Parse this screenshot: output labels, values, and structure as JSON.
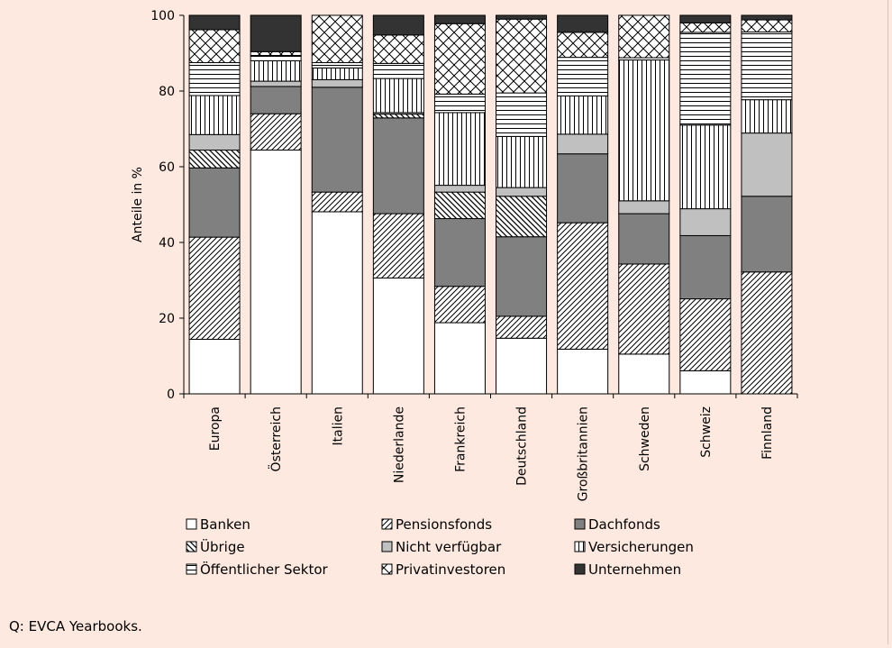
{
  "chart_data": {
    "type": "bar",
    "stacked": true,
    "title": "",
    "xlabel": "",
    "ylabel": "Anteile in %",
    "ylim": [
      0,
      100
    ],
    "yticks": [
      0,
      20,
      40,
      60,
      80,
      100
    ],
    "grid": false,
    "legend_position": "bottom",
    "categories": [
      "Europa",
      "Österreich",
      "Italien",
      "Niederlande",
      "Frankreich",
      "Deutschland",
      "Großbritannien",
      "Schweden",
      "Schweiz",
      "Finnland"
    ],
    "series": [
      {
        "name": "Banken",
        "color": "#ffffff",
        "pattern": "solid",
        "values": [
          14.4,
          64.4,
          48.1,
          30.6,
          18.8,
          14.7,
          11.8,
          10.5,
          6.1,
          0.0
        ]
      },
      {
        "name": "Pensionsfonds",
        "color": "#ffffff",
        "pattern": "diag-fine",
        "values": [
          27.0,
          9.6,
          5.2,
          17.0,
          9.6,
          5.8,
          33.4,
          23.8,
          19.0,
          32.2
        ]
      },
      {
        "name": "Dachfonds",
        "color": "#808080",
        "pattern": "solid",
        "values": [
          18.3,
          7.2,
          27.7,
          25.3,
          17.9,
          21.0,
          18.2,
          13.3,
          16.7,
          20.0
        ]
      },
      {
        "name": "Übrige",
        "color": "#ffffff",
        "pattern": "diag-back",
        "values": [
          4.7,
          0.0,
          0.0,
          1.0,
          7.0,
          10.7,
          0.0,
          0.0,
          0.0,
          0.0
        ]
      },
      {
        "name": "Nicht verfügbar",
        "color": "#c0c0c0",
        "pattern": "solid",
        "values": [
          4.1,
          1.4,
          2.0,
          0.4,
          1.8,
          2.3,
          5.2,
          3.4,
          7.1,
          16.7
        ]
      },
      {
        "name": "Versicherungen",
        "color": "#ffffff",
        "pattern": "vertical",
        "values": [
          10.3,
          5.4,
          3.1,
          9.0,
          19.2,
          13.5,
          10.1,
          37.2,
          22.1,
          8.8
        ]
      },
      {
        "name": "Öffentlicher Sektor",
        "color": "#ffffff",
        "pattern": "horizontal",
        "values": [
          8.7,
          1.4,
          1.4,
          4.0,
          4.9,
          11.5,
          10.2,
          0.6,
          24.5,
          17.9
        ]
      },
      {
        "name": "Privatinvestoren",
        "color": "#ffffff",
        "pattern": "crosshatch",
        "values": [
          8.7,
          1.0,
          12.5,
          7.5,
          18.6,
          19.5,
          6.6,
          11.2,
          2.5,
          3.2
        ]
      },
      {
        "name": "Unternehmen",
        "color": "#333333",
        "pattern": "solid",
        "values": [
          3.8,
          9.6,
          0.0,
          5.2,
          2.2,
          1.0,
          4.5,
          0.0,
          2.0,
          1.2
        ]
      }
    ]
  },
  "source_note": "Q: EVCA Yearbooks."
}
